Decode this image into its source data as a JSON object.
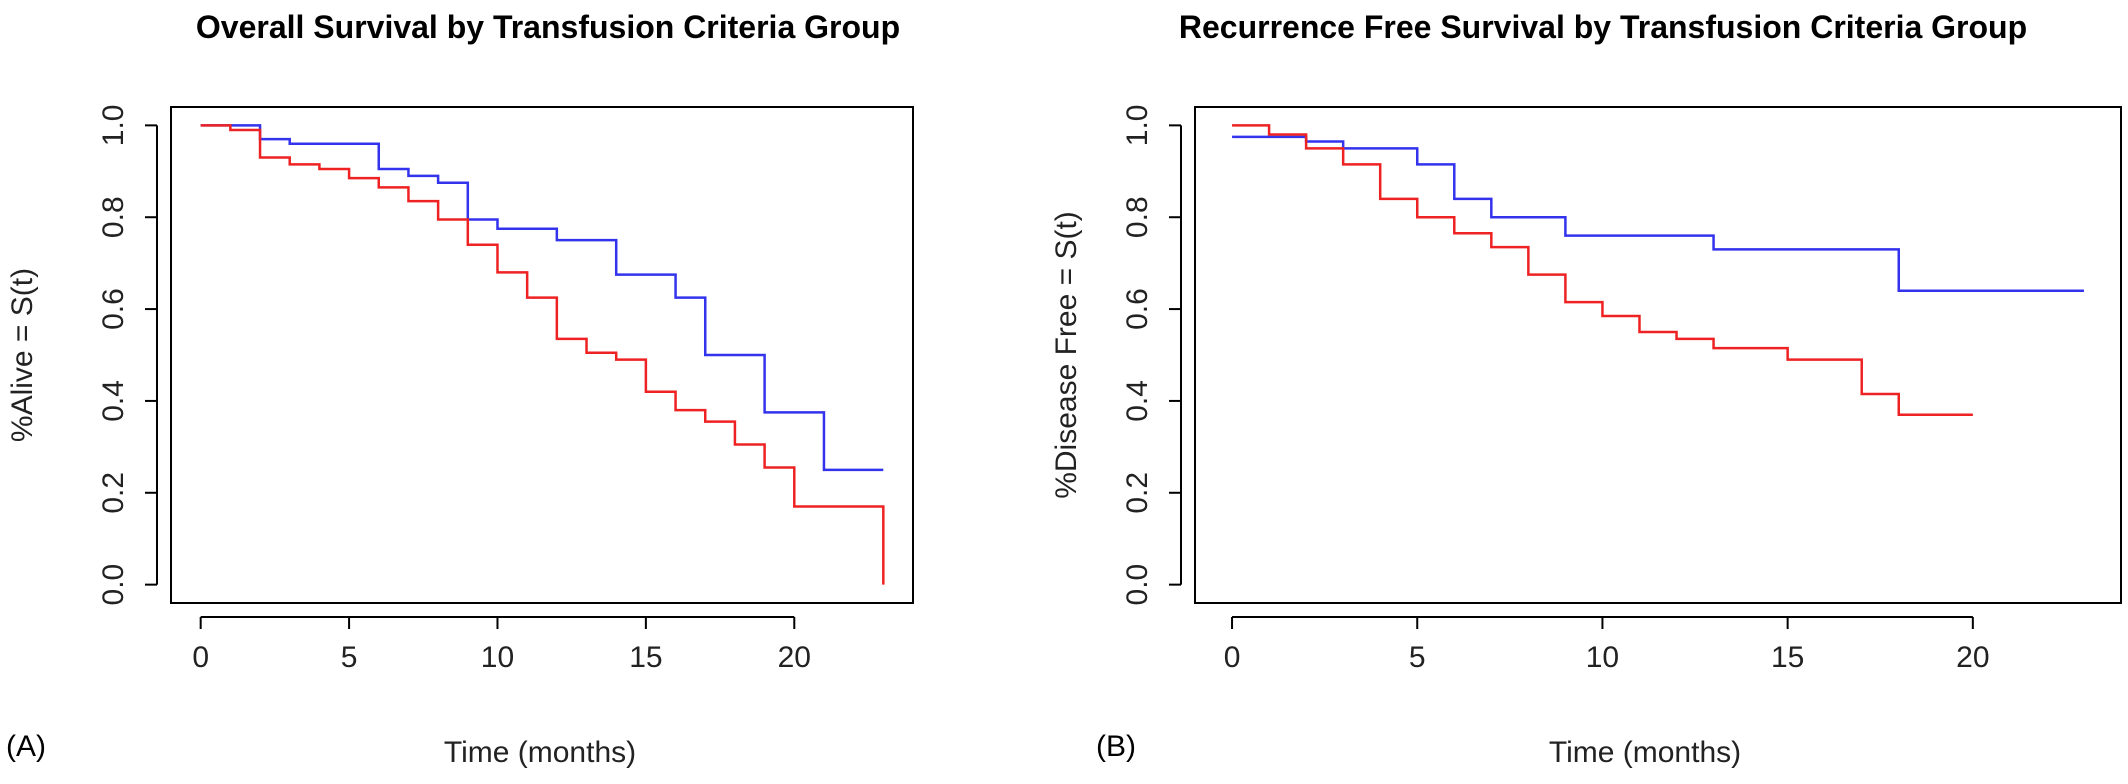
{
  "chart_data": [
    {
      "type": "line",
      "panel_label": "(A)",
      "title": "Overall Survival by Transfusion Criteria Group",
      "xlabel": "Time (months)",
      "ylabel": "%Alive = S(t)",
      "xlim": [
        -1,
        24
      ],
      "ylim": [
        -0.04,
        1.04
      ],
      "xticks": [
        0,
        5,
        10,
        15,
        20
      ],
      "yticks": [
        0.0,
        0.2,
        0.4,
        0.6,
        0.8,
        1.0
      ],
      "xtick_labels": [
        "0",
        "5",
        "10",
        "15",
        "20"
      ],
      "ytick_labels": [
        "0.0",
        "0.2",
        "0.4",
        "0.6",
        "0.8",
        "1.0"
      ],
      "series": [
        {
          "color": "#3333ee",
          "x": [
            0,
            2,
            3,
            6,
            7,
            8,
            9,
            10,
            12,
            14,
            16,
            17,
            19,
            21,
            23
          ],
          "y": [
            1.0,
            0.97,
            0.96,
            0.905,
            0.89,
            0.875,
            0.795,
            0.775,
            0.75,
            0.675,
            0.625,
            0.5,
            0.375,
            0.25,
            0.25
          ]
        },
        {
          "color": "#ee2222",
          "x": [
            0,
            1,
            2,
            3,
            4,
            5,
            6,
            7,
            8,
            9,
            10,
            11,
            12,
            13,
            14,
            15,
            16,
            17,
            18,
            19,
            20,
            23,
            23
          ],
          "y": [
            1.0,
            0.99,
            0.93,
            0.915,
            0.905,
            0.885,
            0.865,
            0.835,
            0.795,
            0.74,
            0.68,
            0.625,
            0.535,
            0.505,
            0.49,
            0.42,
            0.38,
            0.355,
            0.305,
            0.255,
            0.17,
            0.17,
            0.0
          ]
        }
      ]
    },
    {
      "type": "line",
      "panel_label": "(B)",
      "title": "Recurrence Free Survival by Transfusion Criteria Group",
      "xlabel": "Time (months)",
      "ylabel": "%Disease Free = S(t)",
      "xlim": [
        -1,
        24
      ],
      "ylim": [
        -0.04,
        1.04
      ],
      "xticks": [
        0,
        5,
        10,
        15,
        20
      ],
      "yticks": [
        0.0,
        0.2,
        0.4,
        0.6,
        0.8,
        1.0
      ],
      "xtick_labels": [
        "0",
        "5",
        "10",
        "15",
        "20"
      ],
      "ytick_labels": [
        "0.0",
        "0.2",
        "0.4",
        "0.6",
        "0.8",
        "1.0"
      ],
      "series": [
        {
          "color": "#3333ee",
          "x": [
            0,
            2,
            3,
            5,
            6,
            7,
            9,
            13,
            18,
            23
          ],
          "y": [
            0.975,
            0.965,
            0.95,
            0.915,
            0.84,
            0.8,
            0.76,
            0.73,
            0.64,
            0.64
          ]
        },
        {
          "color": "#ee2222",
          "x": [
            0,
            1,
            2,
            3,
            4,
            5,
            6,
            7,
            8,
            9,
            10,
            11,
            12,
            13,
            15,
            17,
            18,
            20
          ],
          "y": [
            1.0,
            0.98,
            0.95,
            0.915,
            0.84,
            0.8,
            0.765,
            0.735,
            0.675,
            0.615,
            0.585,
            0.55,
            0.535,
            0.515,
            0.49,
            0.415,
            0.37,
            0.37
          ]
        }
      ]
    }
  ]
}
